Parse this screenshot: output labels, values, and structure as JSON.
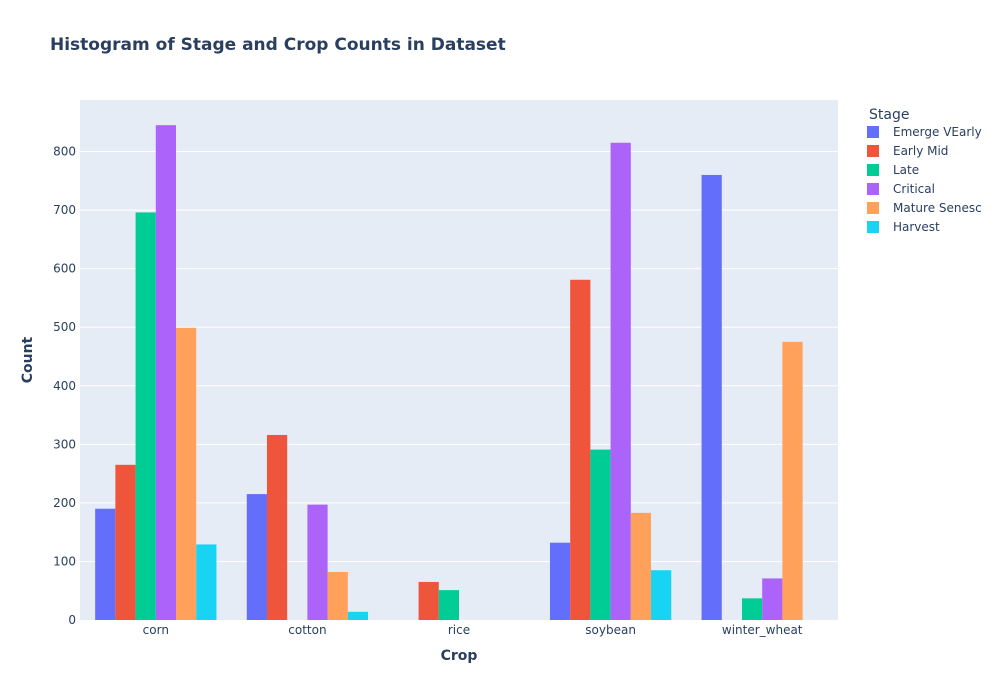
{
  "chart_data": {
    "type": "bar",
    "title": "Histogram of Stage and Crop Counts in Dataset",
    "xlabel": "Crop",
    "ylabel": "Count",
    "categories": [
      "corn",
      "cotton",
      "rice",
      "soybean",
      "winter_wheat"
    ],
    "ylim": [
      0,
      888
    ],
    "yticks": [
      0,
      100,
      200,
      300,
      400,
      500,
      600,
      700,
      800
    ],
    "grid": true,
    "legend_title": "Stage",
    "legend_position": "right",
    "series": [
      {
        "name": "Emerge VEarly",
        "color": "#636efa",
        "values": [
          190,
          215,
          0,
          132,
          760
        ]
      },
      {
        "name": "Early Mid",
        "color": "#ef553b",
        "values": [
          265,
          316,
          65,
          581,
          0
        ]
      },
      {
        "name": "Late",
        "color": "#00cc96",
        "values": [
          696,
          0,
          51,
          291,
          37
        ]
      },
      {
        "name": "Critical",
        "color": "#ab63fa",
        "values": [
          845,
          197,
          0,
          815,
          71
        ]
      },
      {
        "name": "Mature Senesc",
        "color": "#ffa15a",
        "values": [
          499,
          82,
          0,
          183,
          475
        ]
      },
      {
        "name": "Harvest",
        "color": "#19d3f3",
        "values": [
          129,
          14,
          0,
          85,
          0
        ]
      }
    ],
    "plot_background": "#e5ecf6"
  }
}
